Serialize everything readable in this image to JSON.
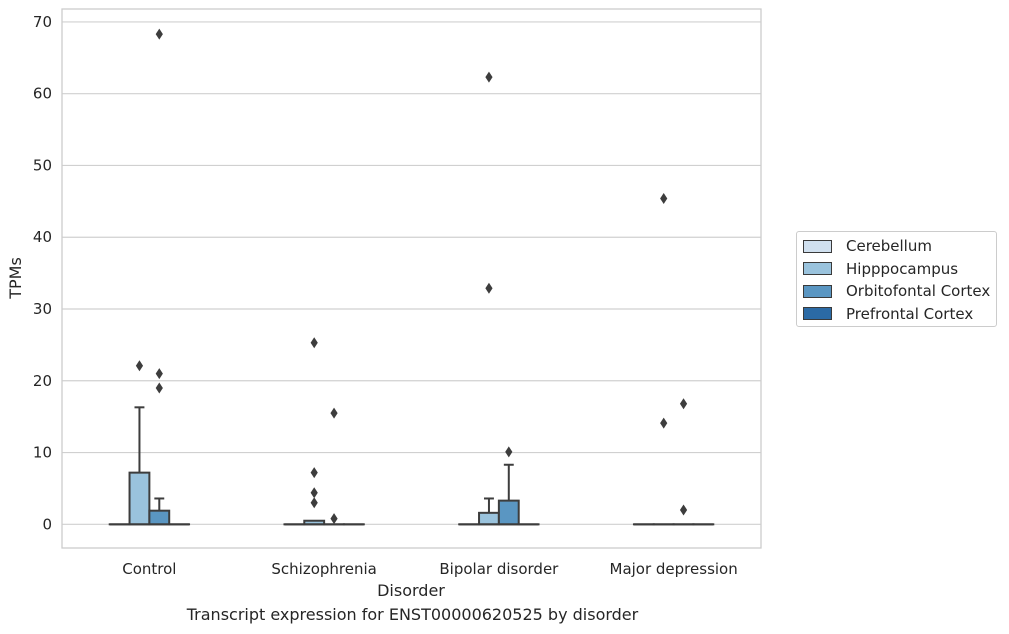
{
  "chart_data": {
    "type": "box",
    "xlabel": "Disorder",
    "ylabel": "TPMs",
    "caption": "Transcript expression for ENST00000620525 by disorder",
    "categories": [
      "Control",
      "Schizophrenia",
      "Bipolar disorder",
      "Major depression"
    ],
    "ylim": [
      -3.3,
      71.8
    ],
    "yticks": [
      "0",
      "10",
      "20",
      "30",
      "40",
      "50",
      "60",
      "70"
    ],
    "grid": "horizontal",
    "legend_placement": "center-right outside",
    "series": [
      {
        "name": "Cerebellum",
        "color": "#d0e0ef",
        "boxes": [
          {
            "q1": 0,
            "median": 0,
            "q3": 0,
            "whisker_low": 0,
            "whisker_high": 0,
            "outliers": []
          },
          {
            "q1": 0,
            "median": 0,
            "q3": 0,
            "whisker_low": 0,
            "whisker_high": 0,
            "outliers": []
          },
          {
            "q1": 0,
            "median": 0,
            "q3": 0,
            "whisker_low": 0,
            "whisker_high": 0,
            "outliers": []
          },
          {
            "q1": 0,
            "median": 0,
            "q3": 0,
            "whisker_low": 0,
            "whisker_high": 0,
            "outliers": []
          }
        ]
      },
      {
        "name": "Hipppocampus",
        "color": "#9ac3dd",
        "boxes": [
          {
            "q1": 0,
            "median": 0,
            "q3": 7.2,
            "whisker_low": 0,
            "whisker_high": 16.3,
            "outliers": [
              22.1
            ]
          },
          {
            "q1": 0,
            "median": 0,
            "q3": 0.5,
            "whisker_low": 0,
            "whisker_high": 0.5,
            "outliers": [
              7.2,
              4.4,
              3.0,
              25.3
            ]
          },
          {
            "q1": 0,
            "median": 0,
            "q3": 1.6,
            "whisker_low": 0,
            "whisker_high": 3.6,
            "outliers": [
              62.3,
              32.9
            ]
          },
          {
            "q1": 0,
            "median": 0,
            "q3": 0,
            "whisker_low": 0,
            "whisker_high": 0,
            "outliers": [
              45.4,
              14.1
            ]
          }
        ]
      },
      {
        "name": "Orbitofontal Cortex",
        "color": "#5a96c2",
        "boxes": [
          {
            "q1": 0,
            "median": 0,
            "q3": 1.9,
            "whisker_low": 0,
            "whisker_high": 3.6,
            "outliers": [
              68.3,
              21.0,
              19.0
            ]
          },
          {
            "q1": 0,
            "median": 0,
            "q3": 0,
            "whisker_low": 0,
            "whisker_high": 0,
            "outliers": [
              15.5,
              0.8
            ]
          },
          {
            "q1": 0,
            "median": 0,
            "q3": 3.3,
            "whisker_low": 0,
            "whisker_high": 8.3,
            "outliers": [
              10.1
            ]
          },
          {
            "q1": 0,
            "median": 0,
            "q3": 0,
            "whisker_low": 0,
            "whisker_high": 0,
            "outliers": [
              16.8,
              2.0
            ]
          }
        ]
      },
      {
        "name": "Prefrontal Cortex",
        "color": "#2b6aa5",
        "boxes": [
          {
            "q1": 0,
            "median": 0,
            "q3": 0,
            "whisker_low": 0,
            "whisker_high": 0,
            "outliers": []
          },
          {
            "q1": 0,
            "median": 0,
            "q3": 0,
            "whisker_low": 0,
            "whisker_high": 0,
            "outliers": []
          },
          {
            "q1": 0,
            "median": 0,
            "q3": 0,
            "whisker_low": 0,
            "whisker_high": 0,
            "outliers": []
          },
          {
            "q1": 0,
            "median": 0,
            "q3": 0,
            "whisker_low": 0,
            "whisker_high": 0,
            "outliers": []
          }
        ]
      }
    ]
  }
}
